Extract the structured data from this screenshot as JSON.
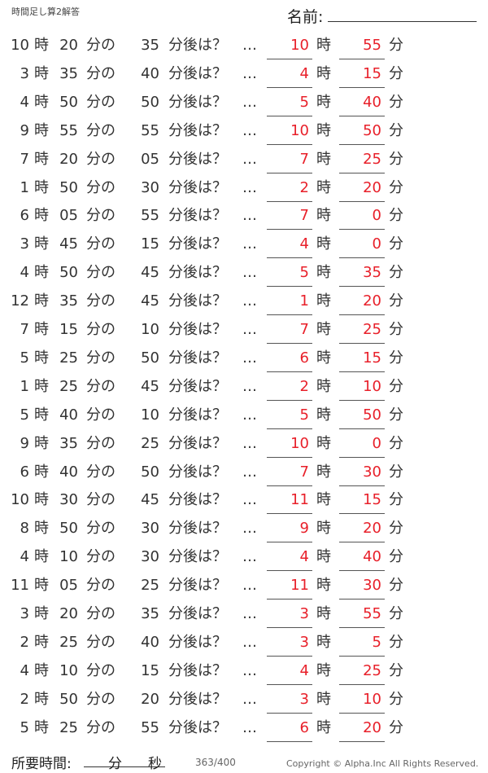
{
  "header": {
    "title": "時間足し算2解答",
    "name_label": "名前:"
  },
  "labels": {
    "hour": "時",
    "min_of": "分の",
    "min_after": "分後は？",
    "dots": "…",
    "min": "分"
  },
  "problems": [
    {
      "h": "10",
      "m": "20",
      "add": "35",
      "ah": "10",
      "am": "55"
    },
    {
      "h": "3",
      "m": "35",
      "add": "40",
      "ah": "4",
      "am": "15"
    },
    {
      "h": "4",
      "m": "50",
      "add": "50",
      "ah": "5",
      "am": "40"
    },
    {
      "h": "9",
      "m": "55",
      "add": "55",
      "ah": "10",
      "am": "50"
    },
    {
      "h": "7",
      "m": "20",
      "add": "05",
      "ah": "7",
      "am": "25"
    },
    {
      "h": "1",
      "m": "50",
      "add": "30",
      "ah": "2",
      "am": "20"
    },
    {
      "h": "6",
      "m": "05",
      "add": "55",
      "ah": "7",
      "am": "0"
    },
    {
      "h": "3",
      "m": "45",
      "add": "15",
      "ah": "4",
      "am": "0"
    },
    {
      "h": "4",
      "m": "50",
      "add": "45",
      "ah": "5",
      "am": "35"
    },
    {
      "h": "12",
      "m": "35",
      "add": "45",
      "ah": "1",
      "am": "20"
    },
    {
      "h": "7",
      "m": "15",
      "add": "10",
      "ah": "7",
      "am": "25"
    },
    {
      "h": "5",
      "m": "25",
      "add": "50",
      "ah": "6",
      "am": "15"
    },
    {
      "h": "1",
      "m": "25",
      "add": "45",
      "ah": "2",
      "am": "10"
    },
    {
      "h": "5",
      "m": "40",
      "add": "10",
      "ah": "5",
      "am": "50"
    },
    {
      "h": "9",
      "m": "35",
      "add": "25",
      "ah": "10",
      "am": "0"
    },
    {
      "h": "6",
      "m": "40",
      "add": "50",
      "ah": "7",
      "am": "30"
    },
    {
      "h": "10",
      "m": "30",
      "add": "45",
      "ah": "11",
      "am": "15"
    },
    {
      "h": "8",
      "m": "50",
      "add": "30",
      "ah": "9",
      "am": "20"
    },
    {
      "h": "4",
      "m": "10",
      "add": "30",
      "ah": "4",
      "am": "40"
    },
    {
      "h": "11",
      "m": "05",
      "add": "25",
      "ah": "11",
      "am": "30"
    },
    {
      "h": "3",
      "m": "20",
      "add": "35",
      "ah": "3",
      "am": "55"
    },
    {
      "h": "2",
      "m": "25",
      "add": "40",
      "ah": "3",
      "am": "5"
    },
    {
      "h": "4",
      "m": "10",
      "add": "15",
      "ah": "4",
      "am": "25"
    },
    {
      "h": "2",
      "m": "50",
      "add": "20",
      "ah": "3",
      "am": "10"
    },
    {
      "h": "5",
      "m": "25",
      "add": "55",
      "ah": "6",
      "am": "20"
    }
  ],
  "footer": {
    "time_label": "所要時間:",
    "min": "分",
    "sec": "秒",
    "page": "363/400",
    "copyright": "Copyright ©  Alpha.Inc All Rights Reserved."
  },
  "colors": {
    "answer": "#e8202a"
  }
}
